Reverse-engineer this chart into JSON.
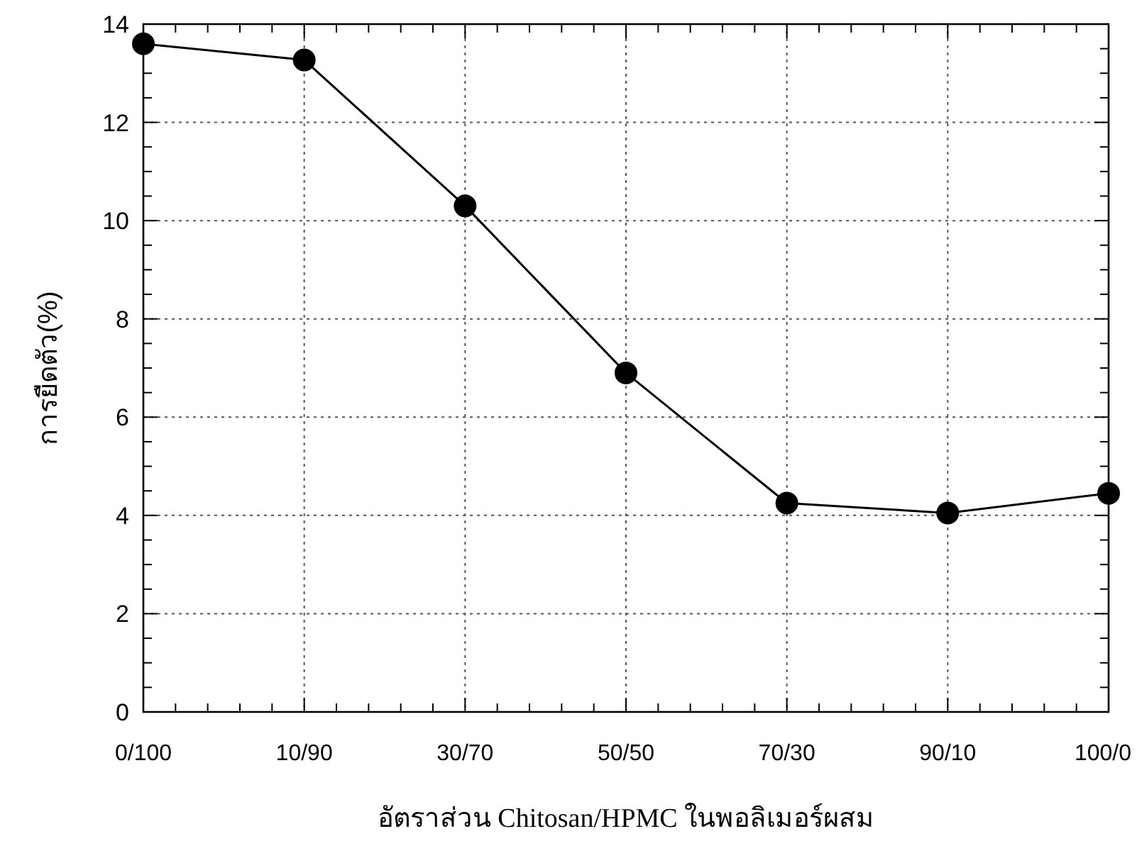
{
  "chart_data": {
    "type": "line",
    "xlabel": "อัตราส่วน Chitosan/HPMC ในพอลิเมอร์ผสม",
    "ylabel": "การยืดตัว(%)",
    "categories": [
      "0/100",
      "10/90",
      "30/70",
      "50/50",
      "70/30",
      "90/10",
      "100/0"
    ],
    "series": [
      {
        "color": "#000000",
        "values": [
          13.6,
          13.27,
          10.3,
          6.9,
          4.25,
          4.05,
          4.45
        ]
      }
    ],
    "ylim": [
      0,
      14
    ],
    "yticks": [
      0,
      2,
      4,
      6,
      8,
      10,
      12,
      14
    ],
    "grid": true,
    "marker": "circle",
    "line_style": "solid"
  }
}
